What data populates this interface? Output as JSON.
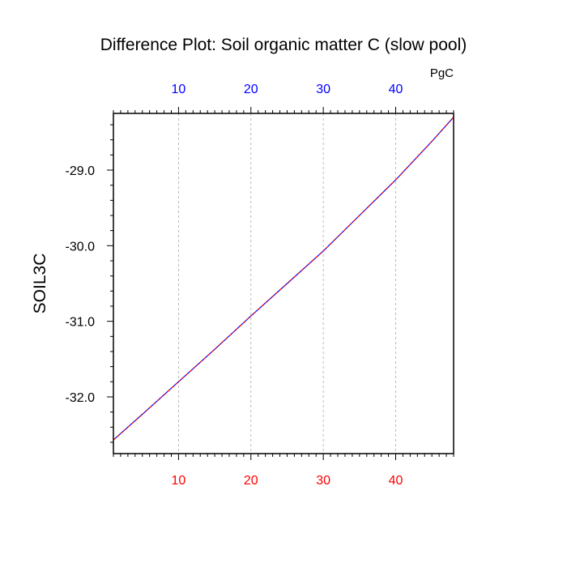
{
  "chart_data": {
    "type": "line",
    "title": "Difference Plot: Soil organic matter C (slow pool)",
    "ylabel": "SOIL3C",
    "units_label": "PgC",
    "xlim": [
      1,
      48
    ],
    "ylim": [
      -32.75,
      -28.25
    ],
    "x_ticks_bottom": [
      10,
      20,
      30,
      40
    ],
    "x_ticks_top": [
      10,
      20,
      30,
      40
    ],
    "y_ticks": [
      -32.0,
      -31.0,
      -30.0,
      -29.0
    ],
    "y_tick_labels": [
      "-32.0",
      "-31.0",
      "-30.0",
      "-29.0"
    ],
    "vertical_gridlines": true,
    "colors": {
      "bottom_axis_labels": "#ff0000",
      "top_axis_labels": "#0000ff",
      "line_primary": "#0000ff",
      "line_overlay": "#ff0000",
      "grid": "#aaaaaa"
    },
    "series": [
      {
        "x": [
          1,
          5,
          10,
          15,
          20,
          25,
          30,
          35,
          40,
          45,
          48
        ],
        "values": [
          -32.57,
          -32.23,
          -31.8,
          -31.37,
          -30.93,
          -30.5,
          -30.07,
          -29.6,
          -29.13,
          -28.62,
          -28.3
        ]
      }
    ]
  }
}
